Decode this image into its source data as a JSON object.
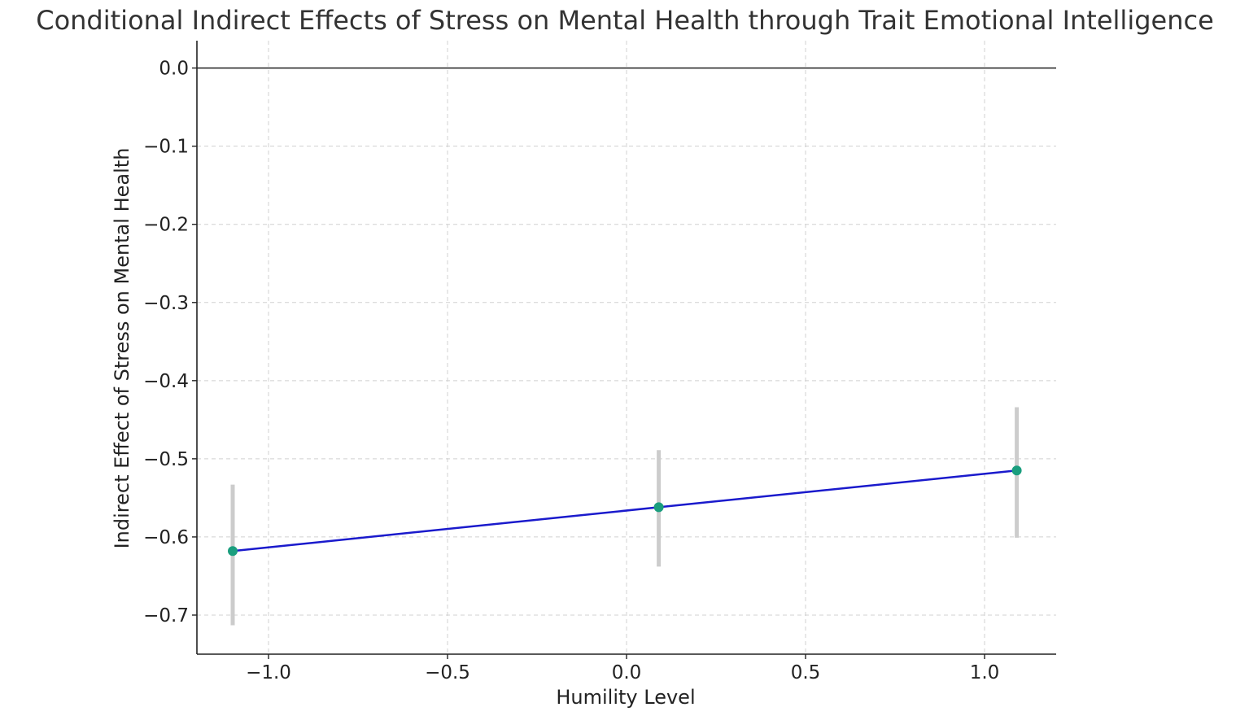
{
  "chart_data": {
    "type": "line",
    "title": "Conditional Indirect Effects of Stress on Mental Health through Trait Emotional Intelligence",
    "xlabel": "Humility Level",
    "ylabel": "Indirect Effect of Stress on Mental Health",
    "xlim": [
      -1.2,
      1.2
    ],
    "ylim": [
      -0.75,
      0.035
    ],
    "x_ticks": [
      -1.0,
      -0.5,
      0.0,
      0.5,
      1.0
    ],
    "x_tick_labels": [
      "−1.0",
      "−0.5",
      "0.0",
      "0.5",
      "1.0"
    ],
    "y_ticks": [
      0.0,
      -0.1,
      -0.2,
      -0.3,
      -0.4,
      -0.5,
      -0.6,
      -0.7
    ],
    "y_tick_labels": [
      "0.0",
      "−0.1",
      "−0.2",
      "−0.3",
      "−0.4",
      "−0.5",
      "−0.6",
      "−0.7"
    ],
    "grid": true,
    "reference_line_y": 0.0,
    "series": [
      {
        "x": [
          -1.1,
          0.09,
          1.09
        ],
        "y": [
          -0.618,
          -0.562,
          -0.515
        ],
        "ci_lower": [
          -0.713,
          -0.638,
          -0.601
        ],
        "ci_upper": [
          -0.533,
          -0.489,
          -0.434
        ]
      }
    ],
    "colors": {
      "line": "#1a1acc",
      "marker": "#1a9e7e",
      "error_bar": "#cccccc",
      "grid": "#d0d0d0",
      "axis": "#222222"
    }
  }
}
